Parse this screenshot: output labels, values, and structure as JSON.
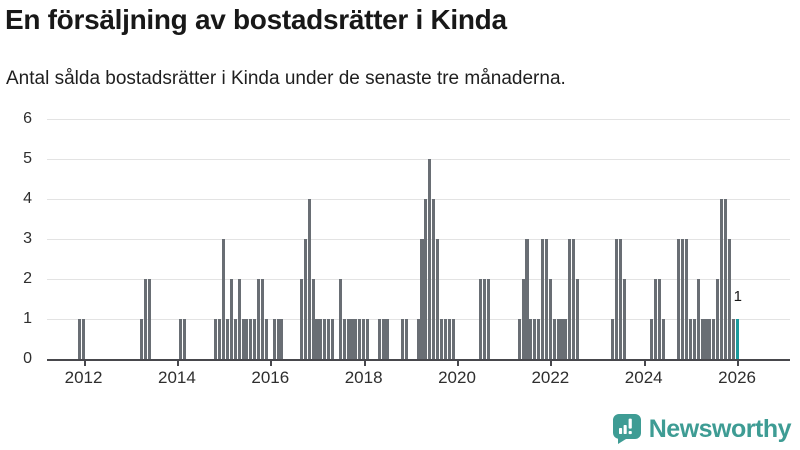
{
  "header": {
    "title": "En försäljning av bostadsrätter i Kinda",
    "subtitle": "Antal sålda bostadsrätter i Kinda under de senaste tre månaderna."
  },
  "chart_data": {
    "type": "bar",
    "title": "En försäljning av bostadsrätter i Kinda",
    "subtitle": "Antal sålda bostadsrätter i Kinda under de senaste tre månaderna.",
    "xlabel": "",
    "ylabel": "",
    "ylim": [
      0,
      6
    ],
    "y_ticks": [
      0,
      1,
      2,
      3,
      4,
      5,
      6
    ],
    "x_ticks": [
      2012,
      2014,
      2016,
      2018,
      2020,
      2022,
      2024,
      2026
    ],
    "x_start_month": "2011-04",
    "months_total": 191,
    "start_offset_months": 3,
    "grid": "horizontal",
    "legend": "none",
    "bar_color": "#696e74",
    "highlight_color": "#1b9a9d",
    "highlight_month": "2026-01",
    "highlight_value_label": "1",
    "bars": [
      [
        "2011-12",
        1
      ],
      [
        "2012-01",
        1
      ],
      [
        "2013-04",
        1
      ],
      [
        "2013-05",
        2
      ],
      [
        "2013-06",
        2
      ],
      [
        "2014-02",
        1
      ],
      [
        "2014-03",
        1
      ],
      [
        "2014-11",
        1
      ],
      [
        "2014-12",
        1
      ],
      [
        "2015-01",
        3
      ],
      [
        "2015-02",
        1
      ],
      [
        "2015-03",
        2
      ],
      [
        "2015-04",
        1
      ],
      [
        "2015-05",
        2
      ],
      [
        "2015-06",
        1
      ],
      [
        "2015-07",
        1
      ],
      [
        "2015-08",
        1
      ],
      [
        "2015-09",
        1
      ],
      [
        "2015-10",
        2
      ],
      [
        "2015-11",
        2
      ],
      [
        "2015-12",
        1
      ],
      [
        "2016-02",
        1
      ],
      [
        "2016-03",
        1
      ],
      [
        "2016-04",
        1
      ],
      [
        "2016-09",
        2
      ],
      [
        "2016-10",
        3
      ],
      [
        "2016-11",
        4
      ],
      [
        "2016-12",
        2
      ],
      [
        "2017-01",
        1
      ],
      [
        "2017-02",
        1
      ],
      [
        "2017-03",
        1
      ],
      [
        "2017-04",
        1
      ],
      [
        "2017-05",
        1
      ],
      [
        "2017-07",
        2
      ],
      [
        "2017-08",
        1
      ],
      [
        "2017-09",
        1
      ],
      [
        "2017-10",
        1
      ],
      [
        "2017-11",
        1
      ],
      [
        "2017-12",
        1
      ],
      [
        "2018-01",
        1
      ],
      [
        "2018-02",
        1
      ],
      [
        "2018-05",
        1
      ],
      [
        "2018-06",
        1
      ],
      [
        "2018-07",
        1
      ],
      [
        "2018-11",
        1
      ],
      [
        "2018-12",
        1
      ],
      [
        "2019-03",
        1
      ],
      [
        "2019-04",
        3
      ],
      [
        "2019-05",
        4
      ],
      [
        "2019-06",
        5
      ],
      [
        "2019-07",
        4
      ],
      [
        "2019-08",
        3
      ],
      [
        "2019-09",
        1
      ],
      [
        "2019-10",
        1
      ],
      [
        "2019-11",
        1
      ],
      [
        "2019-12",
        1
      ],
      [
        "2020-07",
        2
      ],
      [
        "2020-08",
        2
      ],
      [
        "2020-09",
        2
      ],
      [
        "2021-05",
        1
      ],
      [
        "2021-06",
        2
      ],
      [
        "2021-07",
        3
      ],
      [
        "2021-08",
        1
      ],
      [
        "2021-09",
        1
      ],
      [
        "2021-10",
        1
      ],
      [
        "2021-11",
        3
      ],
      [
        "2021-12",
        3
      ],
      [
        "2022-01",
        2
      ],
      [
        "2022-02",
        1
      ],
      [
        "2022-03",
        1
      ],
      [
        "2022-04",
        1
      ],
      [
        "2022-05",
        1
      ],
      [
        "2022-06",
        3
      ],
      [
        "2022-07",
        3
      ],
      [
        "2022-08",
        2
      ],
      [
        "2023-05",
        1
      ],
      [
        "2023-06",
        3
      ],
      [
        "2023-07",
        3
      ],
      [
        "2023-08",
        2
      ],
      [
        "2024-03",
        1
      ],
      [
        "2024-04",
        2
      ],
      [
        "2024-05",
        2
      ],
      [
        "2024-06",
        1
      ],
      [
        "2024-10",
        3
      ],
      [
        "2024-11",
        3
      ],
      [
        "2024-12",
        3
      ],
      [
        "2025-01",
        1
      ],
      [
        "2025-02",
        1
      ],
      [
        "2025-03",
        2
      ],
      [
        "2025-04",
        1
      ],
      [
        "2025-05",
        1
      ],
      [
        "2025-06",
        1
      ],
      [
        "2025-07",
        1
      ],
      [
        "2025-08",
        2
      ],
      [
        "2025-09",
        4
      ],
      [
        "2025-10",
        4
      ],
      [
        "2025-11",
        3
      ],
      [
        "2025-12",
        1
      ],
      [
        "2026-01",
        1
      ]
    ]
  },
  "footer": {
    "brand": "Newsworthy",
    "brand_color": "#3e9c94"
  }
}
